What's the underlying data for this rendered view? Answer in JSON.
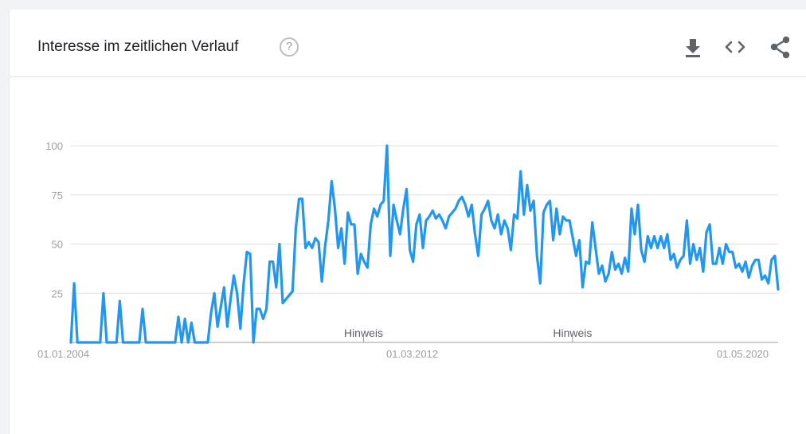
{
  "header": {
    "title": "Interesse im zeitlichen Verlauf",
    "help_glyph": "?"
  },
  "toolbar": [
    "download-icon",
    "embed-icon",
    "share-icon"
  ],
  "colors": {
    "line": "#2196f3",
    "grid": "#e0e0e0",
    "axis": "#9e9e9e"
  },
  "chart_data": {
    "type": "line",
    "title": "",
    "xlabel": "",
    "ylabel": "",
    "ylim": [
      0,
      100
    ],
    "yticks": [
      25,
      50,
      75,
      100
    ],
    "xticks": [
      "01.01.2004",
      "01.03.2012",
      "01.05.2020"
    ],
    "x_start": "01.01.2004",
    "x_end": "01.12.2020",
    "grid": true,
    "annotations": [
      {
        "label": "Hinweis",
        "x": "01.01.2011"
      },
      {
        "label": "Hinweis",
        "x": "01.01.2016"
      }
    ],
    "series": [
      {
        "values": [
          0,
          30,
          0,
          0,
          0,
          0,
          0,
          0,
          0,
          0,
          25,
          0,
          0,
          0,
          0,
          21,
          0,
          0,
          0,
          0,
          0,
          0,
          17,
          0,
          0,
          0,
          0,
          0,
          0,
          0,
          0,
          0,
          0,
          13,
          0,
          12,
          0,
          10,
          0,
          0,
          0,
          0,
          0,
          15,
          25,
          8,
          18,
          28,
          8,
          22,
          34,
          25,
          7,
          30,
          46,
          45,
          0,
          17,
          17,
          12,
          17,
          41,
          41,
          28,
          50,
          20,
          22,
          24,
          26,
          58,
          73,
          73,
          48,
          51,
          48,
          53,
          51,
          31,
          49,
          62,
          82,
          68,
          48,
          58,
          40,
          66,
          60,
          60,
          35,
          45,
          41,
          38,
          60,
          68,
          64,
          70,
          72,
          100,
          44,
          70,
          62,
          55,
          68,
          78,
          47,
          41,
          60,
          65,
          48,
          62,
          64,
          67,
          63,
          65,
          62,
          58,
          64,
          66,
          68,
          72,
          74,
          70,
          64,
          70,
          55,
          44,
          65,
          68,
          72,
          62,
          58,
          65,
          55,
          62,
          58,
          47,
          65,
          63,
          87,
          65,
          80,
          67,
          72,
          44,
          30,
          66,
          70,
          72,
          52,
          68,
          55,
          64,
          62,
          62,
          53,
          44,
          52,
          28,
          41,
          40,
          61,
          48,
          35,
          39,
          31,
          35,
          46,
          37,
          40,
          35,
          43,
          36,
          68,
          55,
          70,
          47,
          41,
          54,
          48,
          54,
          48,
          54,
          48,
          55,
          42,
          45,
          38,
          42,
          44,
          62,
          40,
          50,
          42,
          48,
          36,
          56,
          60,
          40,
          40,
          48,
          40,
          50,
          46,
          46,
          38,
          40,
          36,
          41,
          33,
          39,
          42,
          42,
          32,
          34,
          30,
          42,
          44,
          27
        ]
      }
    ]
  }
}
